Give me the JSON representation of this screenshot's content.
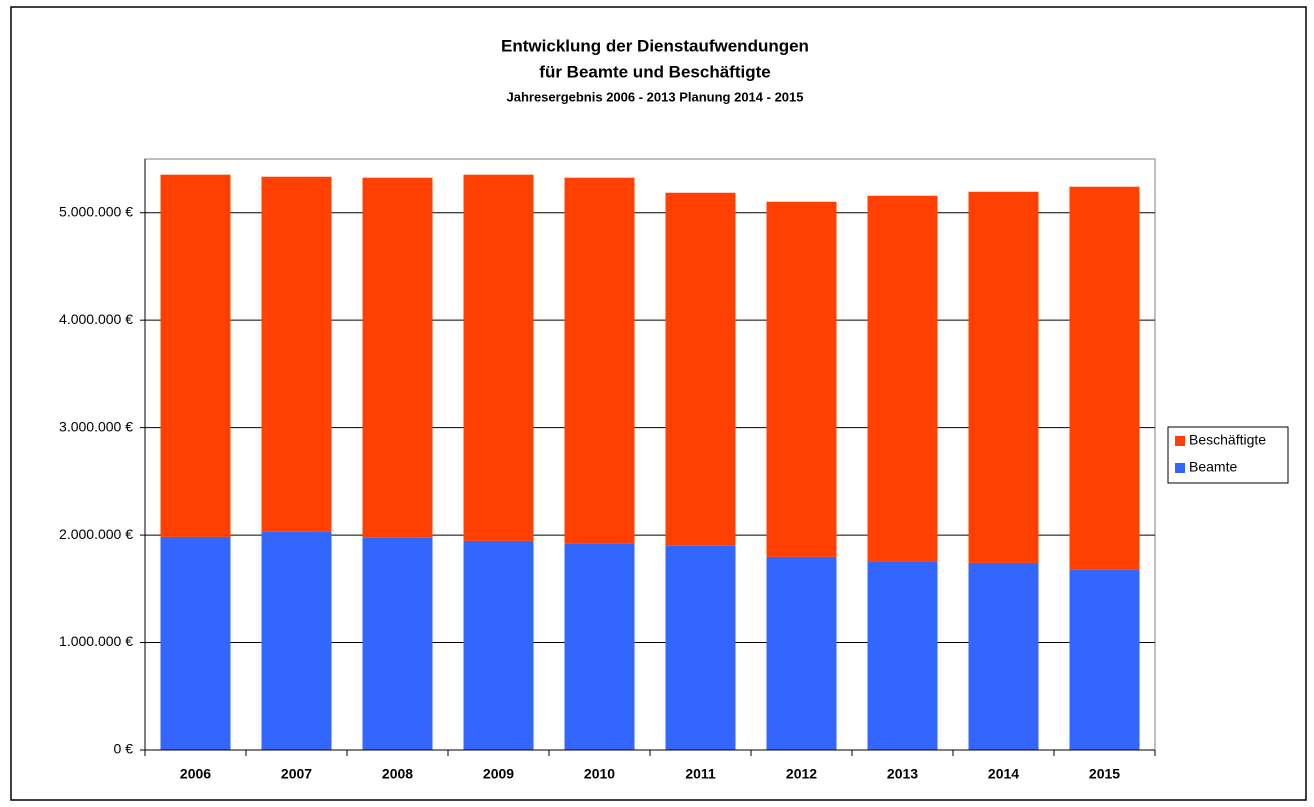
{
  "chart_data": {
    "type": "stacked-bar",
    "title": [
      "Entwicklung der Dienstaufwendungen",
      "für Beamte und Beschäftigte"
    ],
    "subtitle": "Jahresergebnis 2006 - 2013 Planung 2014 - 2015",
    "categories": [
      "2006",
      "2007",
      "2008",
      "2009",
      "2010",
      "2011",
      "2012",
      "2013",
      "2014",
      "2015"
    ],
    "series": [
      {
        "name": "Beamte",
        "color": "#3366ff",
        "values": [
          1983000,
          2030000,
          1974000,
          1946000,
          1918000,
          1900000,
          1797000,
          1750000,
          1741000,
          1676000
        ]
      },
      {
        "name": "Beschäftigte",
        "color": "#ff4000",
        "values": [
          3371000,
          3305000,
          3352000,
          3408000,
          3408000,
          3286000,
          3305000,
          3408000,
          3454000,
          3566000
        ]
      }
    ],
    "ylim": [
      0,
      5500000
    ],
    "yticks": [
      {
        "value": 0,
        "label": "0 €"
      },
      {
        "value": 1000000,
        "label": "1.000.000 €"
      },
      {
        "value": 2000000,
        "label": "2.000.000 €"
      },
      {
        "value": 3000000,
        "label": "3.000.000 €"
      },
      {
        "value": 4000000,
        "label": "4.000.000 €"
      },
      {
        "value": 5000000,
        "label": "5.000.000 €"
      }
    ],
    "grid": true,
    "legend": "right"
  }
}
